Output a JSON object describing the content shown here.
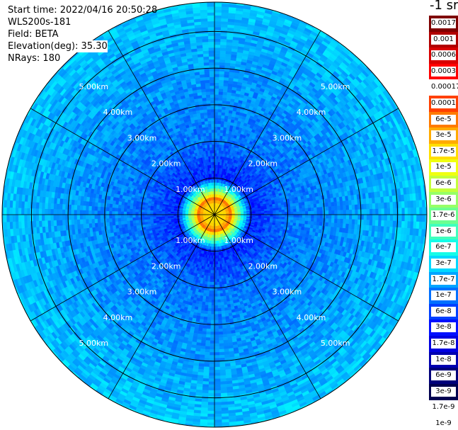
{
  "header": {
    "start_time": "Start time: 2022/04/16 20:50:28",
    "instrument": "WLS200s-181",
    "field": "Field: BETA",
    "elevation": "Elevation(deg): 35.30",
    "nrays": "NRays: 180"
  },
  "legend": {
    "unit_label": "-1 sr",
    "colors": [
      "#7f0000",
      "#b00000",
      "#d80000",
      "#ff0000",
      "#ffffff",
      "#ff4000",
      "#ff7a00",
      "#ffab00",
      "#ffde00",
      "#f0ff10",
      "#c4ff3a",
      "#96ff66",
      "#6cff90",
      "#40ffbc",
      "#14fce8",
      "#00d8ff",
      "#00a4ff",
      "#0070ff",
      "#0040ff",
      "#0010ff",
      "#0000e0",
      "#0000b0",
      "#00007a",
      "#000050"
    ],
    "labels": [
      "0.0017",
      "0.001",
      "0.0006",
      "0.0003",
      "0.00017",
      "0.0001",
      "6e-5",
      "3e-5",
      "1.7e-5",
      "1e-5",
      "6e-6",
      "3e-6",
      "1.7e-6",
      "1e-6",
      "6e-7",
      "3e-7",
      "1.7e-7",
      "1e-7",
      "6e-8",
      "3e-8",
      "1.7e-8",
      "1e-8",
      "6e-9",
      "3e-9",
      "1.7e-9",
      "1e-9"
    ]
  },
  "chart_data": {
    "type": "heatmap",
    "projection": "polar PPI",
    "field": "BETA",
    "nrays": 180,
    "elevation_deg": 35.3,
    "max_range_km": 5.8,
    "ring_labels": [
      "1.00km",
      "2.00km",
      "3.00km",
      "4.00km",
      "5.00km"
    ],
    "ring_values_km": [
      1,
      2,
      3,
      4,
      5
    ],
    "spokes_deg": [
      0,
      30,
      60,
      90,
      120,
      150,
      180,
      210,
      240,
      270,
      300,
      330
    ],
    "color_scale": "log, 1e-9 to 0.0017 sr-1",
    "profile": [
      {
        "range_km": 0.0,
        "beta": 1e-05
      },
      {
        "range_km": 0.3,
        "beta": 1.5e-05
      },
      {
        "range_km": 0.45,
        "beta": 6e-05
      },
      {
        "range_km": 0.55,
        "beta": 6e-06
      },
      {
        "range_km": 1.0,
        "beta": 1e-08
      },
      {
        "range_km": 1.5,
        "beta": 1.7e-08
      },
      {
        "range_km": 2.0,
        "beta": 3e-08
      },
      {
        "range_km": 5.8,
        "beta": 1e-07
      }
    ]
  }
}
